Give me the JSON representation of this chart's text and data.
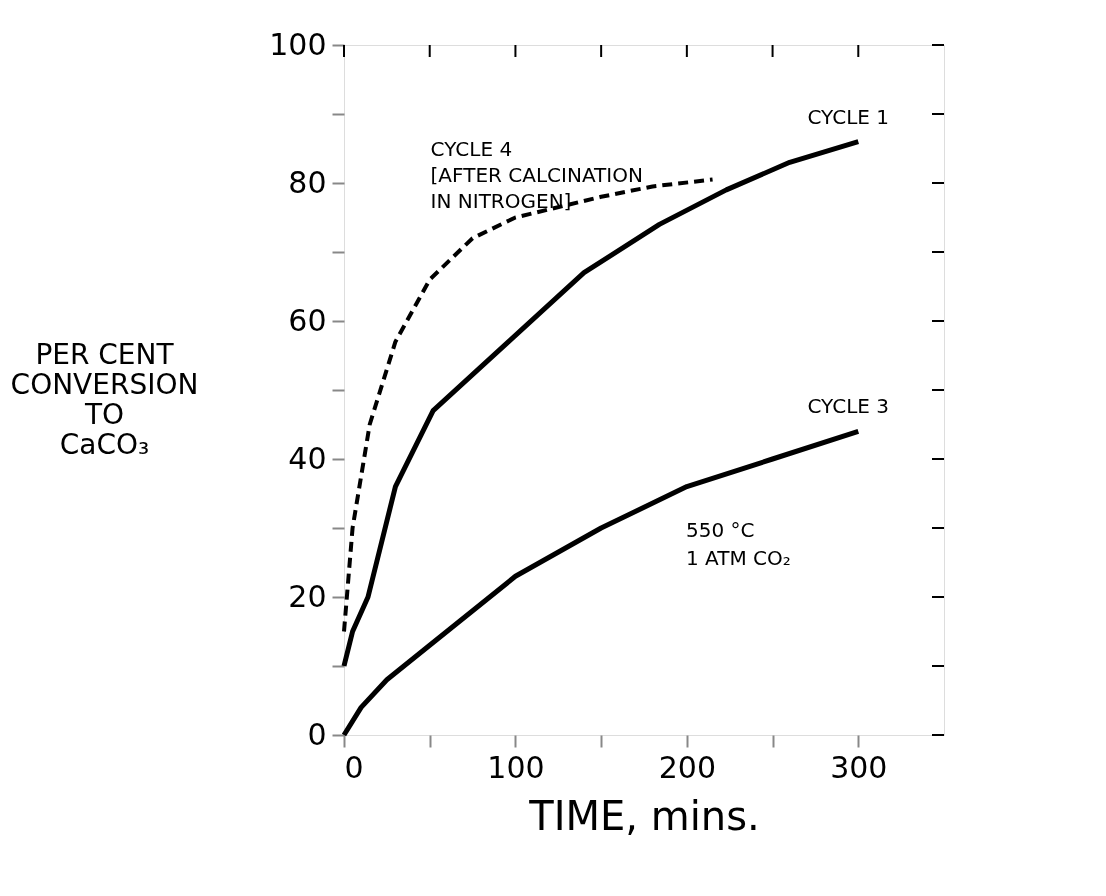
{
  "chart_data": {
    "type": "line",
    "xlabel": "TIME, mins.",
    "ylabel": "PER CENT\nCONVERSION\nTO\nCaCO₃",
    "xlim": [
      0,
      350
    ],
    "ylim": [
      0,
      100
    ],
    "xticks": [
      0,
      {
        "value": 50,
        "label": null
      },
      100,
      {
        "value": 150,
        "label": null
      },
      200,
      {
        "value": 250,
        "label": null
      },
      300
    ],
    "yticks": [
      0,
      {
        "value": 10,
        "label": null
      },
      20,
      {
        "value": 30,
        "label": null
      },
      40,
      {
        "value": 50,
        "label": null
      },
      60,
      {
        "value": 70,
        "label": null
      },
      80,
      {
        "value": 90,
        "label": null
      },
      100
    ],
    "grid": false,
    "marker": "none",
    "series": [
      {
        "name": "CYCLE 1",
        "color": "#000000",
        "line_style": "solid",
        "x": [
          0,
          5,
          14,
          30,
          52,
          96,
          140,
          184,
          223,
          260,
          300
        ],
        "values": [
          10,
          15,
          20,
          36,
          47,
          57,
          67,
          74,
          79,
          83,
          86
        ]
      },
      {
        "name": "CYCLE 3",
        "color": "#000000",
        "line_style": "solid",
        "x": [
          0,
          10,
          25,
          50,
          100,
          150,
          200,
          250,
          300
        ],
        "values": [
          0,
          4,
          8,
          13,
          23,
          30,
          36,
          40,
          44
        ]
      },
      {
        "name": "CYCLE 4\n[AFTER CALCINATION\nIN NITROGEN]",
        "color": "#000000",
        "line_style": "dashed",
        "x": [
          0,
          5,
          15,
          30,
          50,
          75,
          100,
          150,
          180,
          215
        ],
        "values": [
          15,
          30,
          45,
          57,
          66,
          72,
          75,
          78,
          79.5,
          80.5
        ]
      }
    ],
    "annotations": [
      "550 °C\n1 ATM CO₂"
    ]
  }
}
